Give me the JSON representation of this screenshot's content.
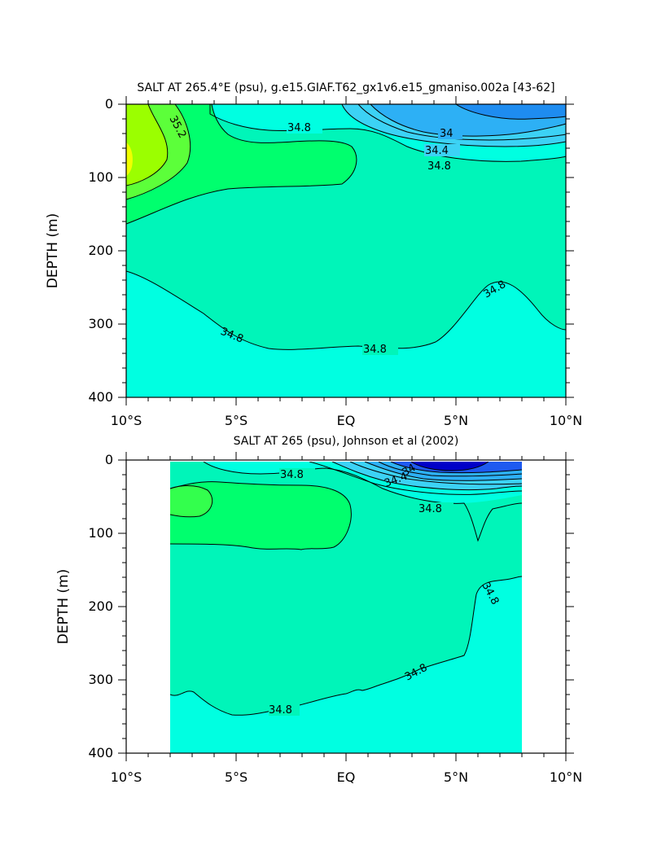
{
  "chart_data": [
    {
      "type": "contour",
      "title": "SALT AT 265.4°E (psu), g.e15.GIAF.T62_gx1v6.e15_gmaniso.002a [43-62]",
      "xlabel": "",
      "ylabel": "DEPTH (m)",
      "xlim": [
        -10,
        10
      ],
      "ylim": [
        400,
        0
      ],
      "x_ticks": [
        -10,
        -5,
        0,
        5,
        10
      ],
      "x_tick_labels": [
        "10°S",
        "5°S",
        "EQ",
        "5°N",
        "10°N"
      ],
      "y_ticks": [
        0,
        100,
        200,
        300,
        400
      ],
      "y_tick_labels": [
        "0",
        "100",
        "200",
        "300",
        "400"
      ],
      "data_extent_x": [
        -10,
        10
      ],
      "contour_labels": [
        "34.8",
        "34",
        "34.4",
        "34.8",
        "35.2",
        "34.8",
        "34.8",
        "34.8"
      ],
      "fill_colors": {
        "fresh_deep_blue": "#1e8cf0",
        "blue": "#2db0f5",
        "light_blue": "#3cd2f5",
        "cyan": "#00ffe1",
        "aqua": "#00f5b9",
        "green": "#00ff6e",
        "yellow_green": "#9bff00",
        "yellow": "#f0ff00"
      }
    },
    {
      "type": "contour",
      "title": "SALT AT 265 (psu), Johnson et al (2002)",
      "xlabel": "",
      "ylabel": "DEPTH (m)",
      "xlim": [
        -10,
        10
      ],
      "ylim": [
        400,
        0
      ],
      "x_ticks": [
        -10,
        -5,
        0,
        5,
        10
      ],
      "x_tick_labels": [
        "10°S",
        "5°S",
        "EQ",
        "5°N",
        "10°N"
      ],
      "y_ticks": [
        0,
        100,
        200,
        300,
        400
      ],
      "y_tick_labels": [
        "0",
        "100",
        "200",
        "300",
        "400"
      ],
      "data_extent_x": [
        -8,
        8
      ],
      "contour_labels": [
        "34.8",
        "34.4",
        "34",
        "34.8",
        "34.8",
        "34.8",
        "34.8"
      ],
      "fill_colors": {
        "navy": "#0000c8",
        "deep_blue": "#1e5af0",
        "blue": "#2db0f5",
        "light_blue": "#3cd2f5",
        "cyan": "#00ffe1",
        "aqua": "#00f5b9",
        "green": "#00ff6e"
      }
    }
  ]
}
